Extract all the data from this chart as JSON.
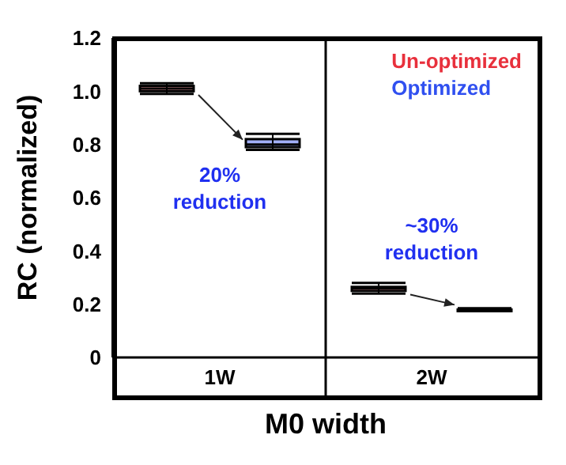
{
  "chart_data": {
    "type": "box",
    "xlabel": "M0 width",
    "ylabel": "RC (normalized)",
    "categories": [
      "1W",
      "2W"
    ],
    "ylim": [
      0,
      1.2
    ],
    "yticks": [
      0,
      0.2,
      0.4,
      0.6,
      0.8,
      {
        "value": 1,
        "label": "1.0"
      },
      1.2
    ],
    "legend": "top right",
    "series": [
      {
        "name": "Un-optimized",
        "color": "#e8303c",
        "boxes": [
          {
            "low": 0.99,
            "q1": 1.0,
            "median": 1.01,
            "q3": 1.02,
            "high": 1.03
          },
          {
            "low": 0.24,
            "q1": 0.25,
            "median": 0.26,
            "q3": 0.265,
            "high": 0.28
          }
        ]
      },
      {
        "name": "Optimized",
        "color": "#3050f0",
        "boxes": [
          {
            "low": 0.78,
            "q1": 0.79,
            "median": 0.8,
            "q3": 0.82,
            "high": 0.84
          },
          {
            "low": 0.175,
            "q1": 0.18,
            "median": 0.18,
            "q3": 0.18,
            "high": 0.185
          }
        ]
      }
    ],
    "annotations": [
      "20% reduction",
      "~30% reduction"
    ]
  }
}
